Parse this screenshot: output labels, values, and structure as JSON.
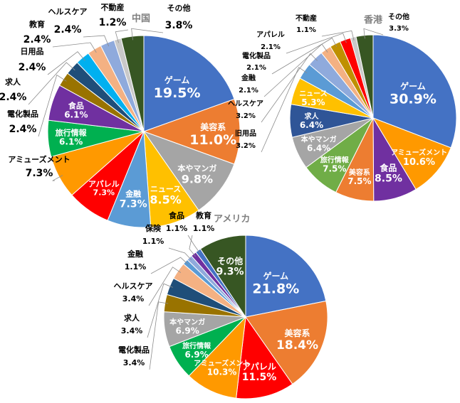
{
  "chart_data": [
    {
      "type": "pie",
      "title": "中国",
      "slices": [
        {
          "label": "ゲーム",
          "display": "19.5%",
          "value": 19.5,
          "color": "#4472c4"
        },
        {
          "label": "美容系",
          "display": "11.0%",
          "value": 11.0,
          "color": "#ed7d31"
        },
        {
          "label": "本やマンガ",
          "display": "9.8%",
          "value": 9.8,
          "color": "#a5a5a5"
        },
        {
          "label": "ニュース",
          "display": "8.5%",
          "value": 8.5,
          "color": "#ffc000"
        },
        {
          "label": "金融",
          "display": "7.3%",
          "value": 7.3,
          "color": "#5b9bd5"
        },
        {
          "label": "アパレル",
          "display": "7.3%",
          "value": 7.3,
          "color": "#ff0000"
        },
        {
          "label": "アミューズメント",
          "display": "7.3%",
          "value": 7.3,
          "color": "#ff9900"
        },
        {
          "label": "旅行情報",
          "display": "6.1%",
          "value": 6.1,
          "color": "#00b050"
        },
        {
          "label": "食品",
          "display": "6.1%",
          "value": 6.1,
          "color": "#7030a0"
        },
        {
          "label": "電化製品",
          "display": "2.4%",
          "value": 2.4,
          "color": "#997300"
        },
        {
          "label": "求人",
          "display": "2.4%",
          "value": 2.4,
          "color": "#1f4e79"
        },
        {
          "label": "日用品",
          "display": "2.4%",
          "value": 2.4,
          "color": "#00b0f0"
        },
        {
          "label": "教育",
          "display": "2.4%",
          "value": 2.4,
          "color": "#f4b183"
        },
        {
          "label": "ヘルスケア",
          "display": "2.4%",
          "value": 2.4,
          "color": "#8faadc"
        },
        {
          "label": "不動産",
          "display": "1.2%",
          "value": 1.2,
          "color": "#c9c9c9"
        },
        {
          "label": "その他",
          "display": "3.8%",
          "value": 3.8,
          "color": "#375623"
        }
      ]
    },
    {
      "type": "pie",
      "title": "香港",
      "slices": [
        {
          "label": "ゲーム",
          "display": "30.9%",
          "value": 30.9,
          "color": "#4472c4"
        },
        {
          "label": "アミューズメント",
          "display": "10.6%",
          "value": 10.6,
          "color": "#ff9900"
        },
        {
          "label": "食品",
          "display": "8.5%",
          "value": 8.5,
          "color": "#7030a0"
        },
        {
          "label": "美容系",
          "display": "7.5%",
          "value": 7.5,
          "color": "#ed7d31"
        },
        {
          "label": "旅行情報",
          "display": "7.5%",
          "value": 7.5,
          "color": "#70ad47"
        },
        {
          "label": "本やマンガ",
          "display": "6.4%",
          "value": 6.4,
          "color": "#a5a5a5"
        },
        {
          "label": "求人",
          "display": "6.4%",
          "value": 6.4,
          "color": "#2f5597"
        },
        {
          "label": "ニュース",
          "display": "5.3%",
          "value": 5.3,
          "color": "#ffc000"
        },
        {
          "label": "旧用品",
          "display": "3.2%",
          "value": 3.2,
          "color": "#5b9bd5"
        },
        {
          "label": "ヘルスケア",
          "display": "3.2%",
          "value": 3.2,
          "color": "#8faadc"
        },
        {
          "label": "金融",
          "display": "2.1%",
          "value": 2.1,
          "color": "#f4b183"
        },
        {
          "label": "電化製品",
          "display": "2.1%",
          "value": 2.1,
          "color": "#bf9000"
        },
        {
          "label": "アパレル",
          "display": "2.1%",
          "value": 2.1,
          "color": "#ff0000"
        },
        {
          "label": "不動産",
          "display": "1.1%",
          "value": 1.1,
          "color": "#c9c9c9"
        },
        {
          "label": "その他",
          "display": "3.3%",
          "value": 3.3,
          "color": "#375623"
        }
      ]
    },
    {
      "type": "pie",
      "title": "アメリカ",
      "slices": [
        {
          "label": "ゲーム",
          "display": "21.8%",
          "value": 21.8,
          "color": "#4472c4"
        },
        {
          "label": "美容系",
          "display": "18.4%",
          "value": 18.4,
          "color": "#ed7d31"
        },
        {
          "label": "アパレル",
          "display": "11.5%",
          "value": 11.5,
          "color": "#ff0000"
        },
        {
          "label": "アミューズメント",
          "display": "10.3%",
          "value": 10.3,
          "color": "#ff9900"
        },
        {
          "label": "旅行情報",
          "display": "6.9%",
          "value": 6.9,
          "color": "#00b050"
        },
        {
          "label": "本やマンガ",
          "display": "6.9%",
          "value": 6.9,
          "color": "#a5a5a5"
        },
        {
          "label": "電化製品",
          "display": "3.4%",
          "value": 3.4,
          "color": "#997300"
        },
        {
          "label": "求人",
          "display": "3.4%",
          "value": 3.4,
          "color": "#1f4e79"
        },
        {
          "label": "ヘルスケア",
          "display": "3.4%",
          "value": 3.4,
          "color": "#f4b183"
        },
        {
          "label": "金融",
          "display": "1.1%",
          "value": 1.1,
          "color": "#5b9bd5"
        },
        {
          "label": "保険",
          "display": "1.1%",
          "value": 1.1,
          "color": "#8faadc"
        },
        {
          "label": "食品",
          "display": "1.1%",
          "value": 1.1,
          "color": "#7030a0"
        },
        {
          "label": "教育",
          "display": "1.1%",
          "value": 1.1,
          "color": "#4472c4"
        },
        {
          "label": "その他",
          "display": "9.3%",
          "value": 9.3,
          "color": "#375623"
        }
      ]
    }
  ]
}
